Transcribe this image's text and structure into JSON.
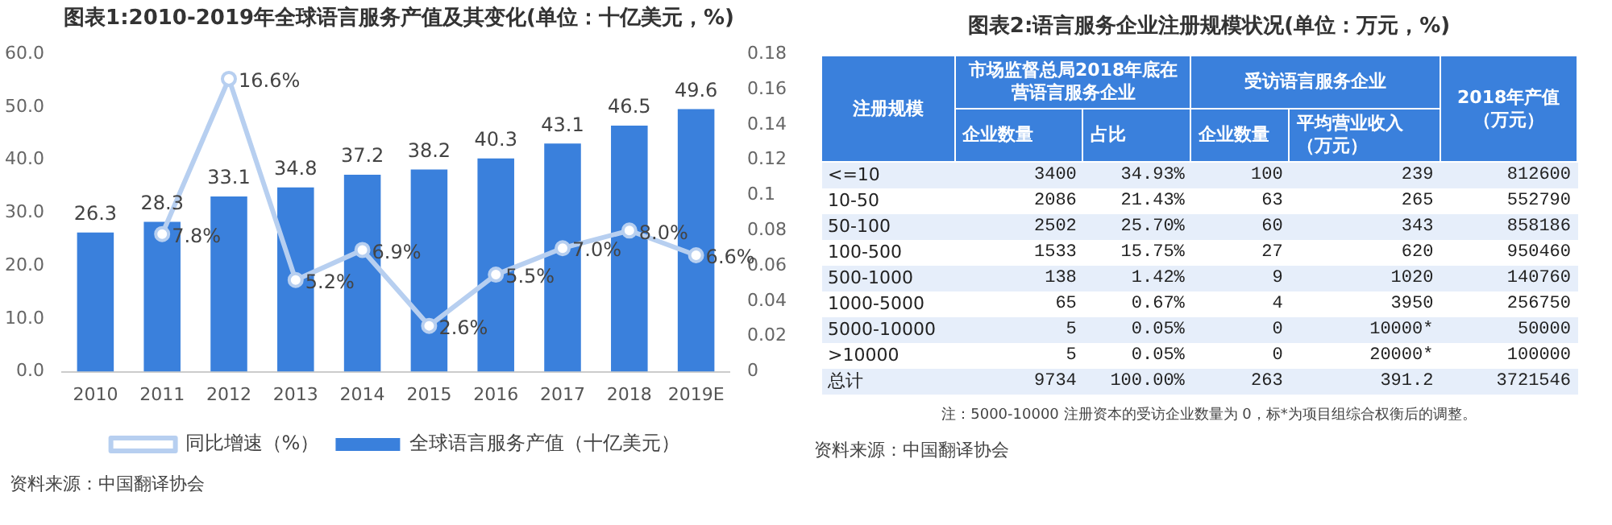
{
  "chart_data": [
    {
      "type": "bar",
      "title": "图表1:2010-2019年全球语言服务产值及其变化(单位：十亿美元，%)",
      "categories": [
        "2010",
        "2011",
        "2012",
        "2013",
        "2014",
        "2015",
        "2016",
        "2017",
        "2018",
        "2019E"
      ],
      "series": [
        {
          "name": "全球语言服务产值（十亿美元）",
          "type": "bar",
          "color": "#3a80dc",
          "values": [
            26.3,
            28.3,
            33.1,
            34.8,
            37.2,
            38.2,
            40.3,
            43.1,
            46.5,
            49.6
          ],
          "value_labels": [
            "26.3",
            "28.3",
            "33.1",
            "34.8",
            "37.2",
            "38.2",
            "40.3",
            "43.1",
            "46.5",
            "49.6"
          ]
        },
        {
          "name": "同比增速（%）",
          "type": "line",
          "axis": "y2",
          "color": "#b7cff0",
          "marker": "circle",
          "values": [
            null,
            0.078,
            0.166,
            0.052,
            0.069,
            0.026,
            0.055,
            0.07,
            0.08,
            0.066
          ],
          "value_labels": [
            null,
            "7.8%",
            "16.6%",
            "5.2%",
            "6.9%",
            "2.6%",
            "5.5%",
            "7.0%",
            "8.0%",
            "6.6%"
          ]
        }
      ],
      "ylim": [
        0,
        60
      ],
      "yticks": [
        {
          "value": 0,
          "label": "0.0"
        },
        {
          "value": 10,
          "label": "10.0"
        },
        {
          "value": 20,
          "label": "20.0"
        },
        {
          "value": 30,
          "label": "30.0"
        },
        {
          "value": 40,
          "label": "40.0"
        },
        {
          "value": 50,
          "label": "50.0"
        },
        {
          "value": 60,
          "label": "60.0"
        }
      ],
      "y2lim": [
        0,
        0.18
      ],
      "y2ticks": [
        0,
        0.02,
        0.04,
        0.06,
        0.08,
        0.1,
        0.12,
        0.14,
        0.16,
        0.18
      ],
      "grid": false,
      "legend": "bottom",
      "annotations": [
        "资料来源：中国翻译协会"
      ]
    },
    {
      "type": "other",
      "title": "图表2:语言服务企业注册规模状况(单位：万元，%)",
      "cell_labels": [
        [
          "注册规模",
          "市场监督总局2018年底在营语言服务企业",
          null,
          "受访语言服务企业",
          null,
          "2018年产值（万元）"
        ],
        [
          null,
          "企业数量",
          "占比",
          "企业数量",
          "平均营业收入（万元）",
          null
        ],
        [
          "<=10",
          "3400",
          "34.93%",
          "100",
          "239",
          "812600"
        ],
        [
          "10-50",
          "2086",
          "21.43%",
          "63",
          "265",
          "552790"
        ],
        [
          "50-100",
          "2502",
          "25.70%",
          "60",
          "343",
          "858186"
        ],
        [
          "100-500",
          "1533",
          "15.75%",
          "27",
          "620",
          "950460"
        ],
        [
          "500-1000",
          "138",
          "1.42%",
          "9",
          "1020",
          "140760"
        ],
        [
          "1000-5000",
          "65",
          "0.67%",
          "4",
          "3950",
          "256750"
        ],
        [
          "5000-10000",
          "5",
          "0.05%",
          "0",
          "10000*",
          "50000"
        ],
        [
          ">10000",
          "5",
          "0.05%",
          "0",
          "20000*",
          "100000"
        ],
        [
          "总计",
          "9734",
          "100.00%",
          "263",
          "391.2",
          "3721546"
        ]
      ],
      "annotations": [
        "注：5000-10000 注册资本的受访企业数量为 0，标*为项目组综合权衡后的调整。",
        "资料来源：中国翻译协会"
      ]
    }
  ]
}
